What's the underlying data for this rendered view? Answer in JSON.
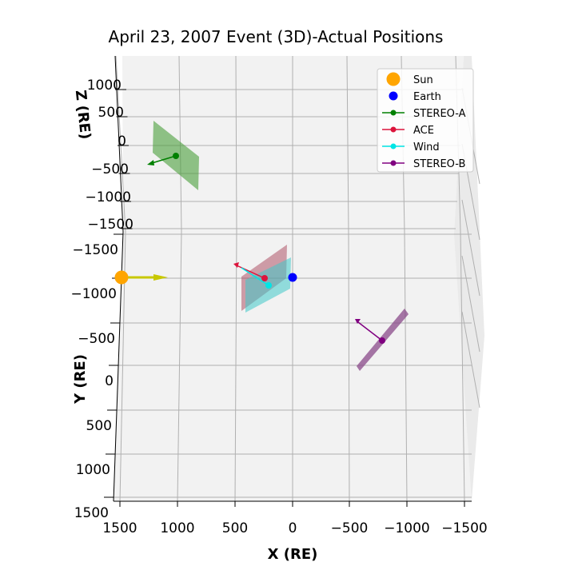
{
  "chart_data": {
    "type": "scatter",
    "title": "April 23, 2007 Event (3D)-Actual Positions",
    "xlabel": "X (RE)",
    "ylabel": "Y (RE)",
    "zlabel": "Z (RE)",
    "x_ticks": [
      "1500",
      "1000",
      "500",
      "0",
      "−500",
      "−1000",
      "−1500"
    ],
    "y_ticks": [
      "−1500",
      "−1000",
      "−500",
      "0",
      "500",
      "1000",
      "1500"
    ],
    "z_ticks": [
      "1000",
      "500",
      "0",
      "−500",
      "−1000",
      "−1500"
    ],
    "xlim": [
      1500,
      -1500
    ],
    "ylim": [
      -1500,
      1500
    ],
    "zlim": [
      -1500,
      1000
    ],
    "grid": true,
    "legend_position": "top-right",
    "series": [
      {
        "name": "Sun",
        "marker": "circle-large",
        "color": "#ffa500",
        "x": 1500,
        "y": 0
      },
      {
        "name": "Earth",
        "marker": "circle",
        "color": "#0000ff",
        "x": 0,
        "y": 0
      },
      {
        "name": "STEREO-A",
        "marker": "circle-line",
        "color": "#008000",
        "x": 1020,
        "z": -380
      },
      {
        "name": "ACE",
        "marker": "circle-line",
        "color": "#dc143c",
        "x": 240,
        "y": 0
      },
      {
        "name": "Wind",
        "marker": "circle-line",
        "color": "#00e5e5",
        "x": 210,
        "y": 60
      },
      {
        "name": "STEREO-B",
        "marker": "circle-line",
        "color": "#800080",
        "x": -790,
        "y": 650
      }
    ]
  }
}
